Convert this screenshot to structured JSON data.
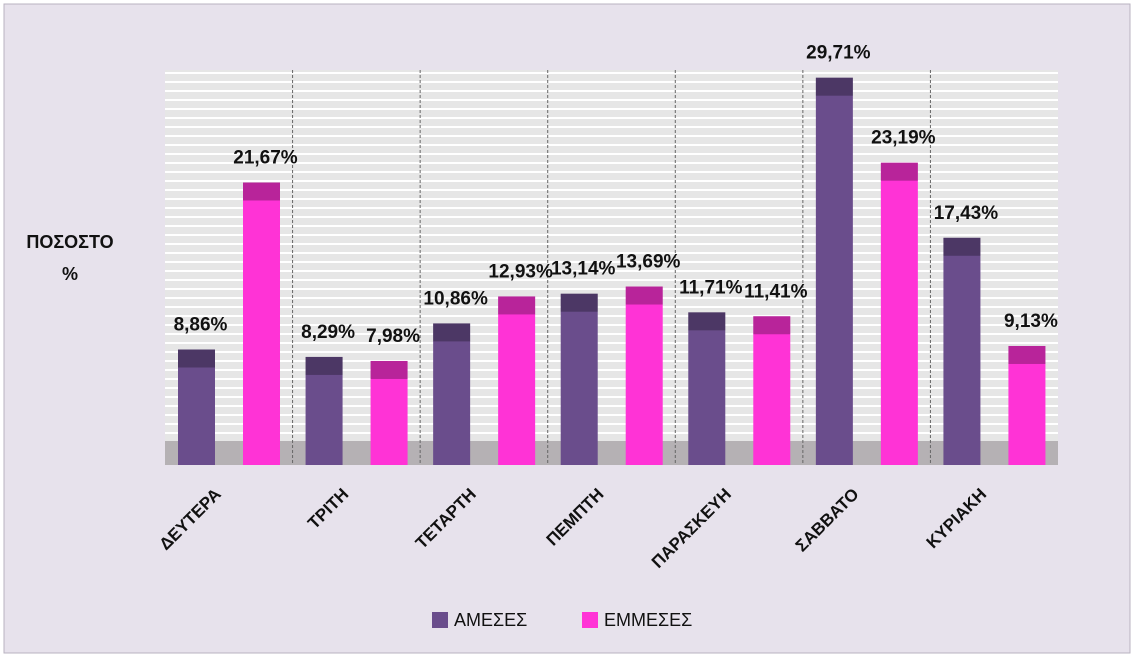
{
  "chart_data": {
    "type": "bar",
    "y_label": [
      "ΠΟΣΟΣΤΟ",
      "%"
    ],
    "categories": [
      "ΔΕΥΤΕΡΑ",
      "ΤΡΙΤΗ",
      "ΤΕΤΑΡΤΗ",
      "ΠΕΜΠΤΗ",
      "ΠΑΡΑΣΚΕΥΗ",
      "ΣΑΒΒΑΤΟ",
      "ΚΥΡΙΑΚΗ"
    ],
    "series": [
      {
        "name": "ΑΜΕΣΕΣ",
        "color": "#6a4d8c",
        "values": [
          8.86,
          8.29,
          10.86,
          13.14,
          11.71,
          29.71,
          17.43
        ],
        "value_labels": [
          "8,86%",
          "8,29%",
          "10,86%",
          "13,14%",
          "11,71%",
          "29,71%",
          "17,43%"
        ]
      },
      {
        "name": "ΕΜΜΕΣΕΣ",
        "color": "#ff33d6",
        "values": [
          21.67,
          7.98,
          12.93,
          13.69,
          11.41,
          23.19,
          9.13
        ],
        "value_labels": [
          "21,67%",
          "7,98%",
          "12,93%",
          "13,69%",
          "11,41%",
          "23,19%",
          "9,13%"
        ]
      }
    ],
    "ylim": [
      0,
      30.3
    ]
  }
}
